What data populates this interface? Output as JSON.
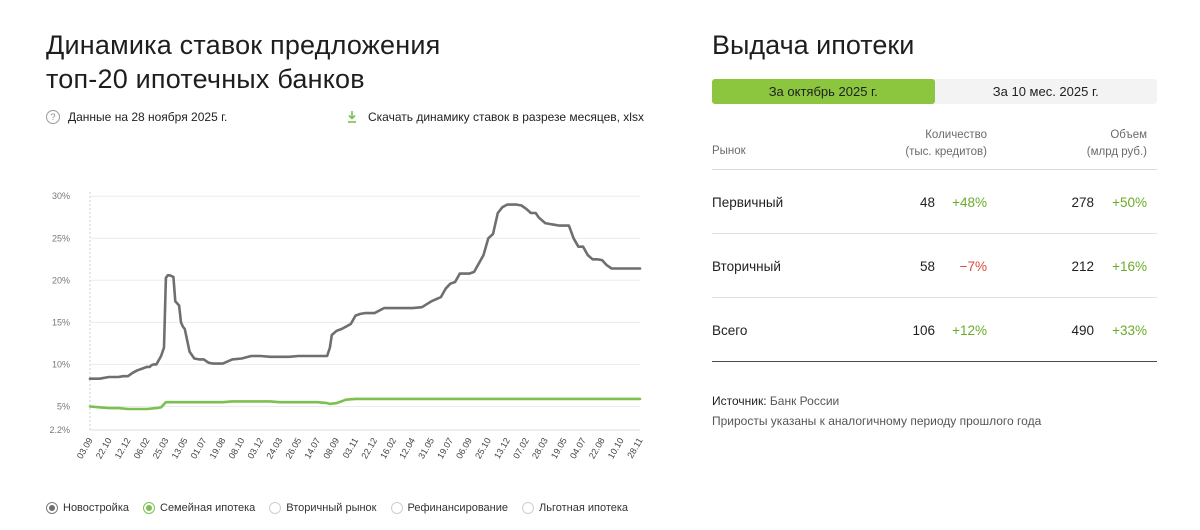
{
  "left": {
    "title_line1": "Динамика ставок предложения",
    "title_line2": "топ-20 ипотечных банков",
    "data_date": "Данные на 28 ноября 2025 г.",
    "download_label": "Скачать динамику ставок в разрезе месяцев, xlsx"
  },
  "legend": [
    {
      "label": "Новостройка",
      "state": "selected",
      "color": "#6f6f6f"
    },
    {
      "label": "Семейная ипотека",
      "state": "selected",
      "color": "#7cc04f"
    },
    {
      "label": "Вторичный рынок",
      "state": "unselected"
    },
    {
      "label": "Рефинансирование",
      "state": "unselected"
    },
    {
      "label": "Льготная ипотека",
      "state": "unselected"
    }
  ],
  "right": {
    "title": "Выдача ипотеки",
    "tabs": [
      {
        "label": "За октябрь 2025 г.",
        "active": true
      },
      {
        "label": "За 10 мес. 2025 г.",
        "active": false
      }
    ],
    "table": {
      "col_market": "Рынок",
      "col_count_1": "Количество",
      "col_count_2": "(тыс. кредитов)",
      "col_volume_1": "Объем",
      "col_volume_2": "(млрд руб.)",
      "rows": [
        {
          "name": "Первичный",
          "count": "48",
          "count_delta": "+48%",
          "count_sign": "pos",
          "volume": "278",
          "volume_delta": "+50%",
          "volume_sign": "pos"
        },
        {
          "name": "Вторичный",
          "count": "58",
          "count_delta": "−7%",
          "count_sign": "neg",
          "volume": "212",
          "volume_delta": "+16%",
          "volume_sign": "pos"
        },
        {
          "name": "Всего",
          "count": "106",
          "count_delta": "+12%",
          "count_sign": "pos",
          "volume": "490",
          "volume_delta": "+33%",
          "volume_sign": "pos"
        }
      ]
    },
    "source_label": "Источник:",
    "source_value": "Банк России",
    "note": "Приросты указаны к аналогичному периоду прошлого года"
  },
  "chart_data": {
    "type": "line",
    "y_ticks": [
      "2.2%",
      "5%",
      "10%",
      "15%",
      "20%",
      "25%",
      "30%"
    ],
    "y_tick_values": [
      2.2,
      5,
      10,
      15,
      20,
      25,
      30
    ],
    "ylim": [
      2.2,
      30.5
    ],
    "grid": true,
    "x_ticks": [
      "03.09",
      "22.10",
      "12.12",
      "06.02",
      "25.03",
      "13.05",
      "01.07",
      "19.08",
      "08.10",
      "03.12",
      "24.03",
      "26.05",
      "14.07",
      "08.09",
      "03.11",
      "22.12",
      "16.02",
      "12.04",
      "31.05",
      "19.07",
      "06.09",
      "25.10",
      "13.12",
      "07.02",
      "28.03",
      "19.05",
      "04.07",
      "22.08",
      "10.10",
      "28.11"
    ],
    "series": [
      {
        "name": "Новостройка",
        "color": "#6f6f6f",
        "x": [
          0,
          1,
          2,
          3,
          3.5,
          4,
          4.5,
          5,
          5.5,
          6,
          6.3,
          6.5,
          6.7,
          7,
          7.5,
          7.8,
          8,
          8.2,
          8.4,
          8.8,
          9,
          9.4,
          9.6,
          9.8,
          10,
          10.5,
          11,
          11.5,
          12,
          12.5,
          13,
          14,
          15,
          16,
          17,
          18,
          19,
          20,
          21,
          22,
          23,
          24,
          25,
          25.3,
          25.5,
          26,
          26.5,
          27,
          27.5,
          28,
          28.5,
          29,
          30,
          31,
          32,
          33,
          34,
          35,
          36,
          37,
          37.5,
          38,
          38.5,
          39,
          39.5,
          40,
          40.5,
          41,
          41.5,
          42,
          42.5,
          43,
          43.5,
          44,
          44.5,
          45,
          45.5,
          46,
          46.5,
          47,
          47.3,
          47.6,
          48,
          48.5,
          49,
          49.5,
          50,
          50.5,
          51,
          51.5,
          52,
          52.5,
          53,
          53.5,
          54,
          54.5,
          55,
          56,
          57,
          58
        ],
        "y": [
          8.3,
          8.3,
          8.5,
          8.5,
          8.6,
          8.6,
          9.0,
          9.3,
          9.5,
          9.7,
          9.7,
          9.9,
          10.0,
          10.0,
          11.0,
          12.0,
          20.3,
          20.6,
          20.6,
          20.4,
          17.5,
          17.0,
          15.0,
          14.5,
          14.2,
          11.5,
          10.7,
          10.6,
          10.6,
          10.2,
          10.1,
          10.1,
          10.6,
          10.7,
          11.0,
          11.0,
          10.9,
          10.9,
          10.9,
          11.0,
          11.0,
          11.0,
          11.0,
          12.0,
          13.5,
          14.0,
          14.2,
          14.5,
          14.8,
          15.8,
          16.0,
          16.1,
          16.1,
          16.7,
          16.7,
          16.7,
          16.7,
          16.8,
          17.5,
          18.0,
          19.0,
          19.6,
          19.8,
          20.8,
          20.8,
          20.8,
          21.0,
          22.0,
          23.0,
          25.0,
          25.5,
          28.0,
          28.7,
          29.0,
          29.0,
          29.0,
          28.9,
          28.5,
          28.0,
          28.0,
          27.5,
          27.2,
          26.8,
          26.7,
          26.6,
          26.5,
          26.5,
          26.5,
          25.0,
          24.0,
          24.0,
          23.0,
          22.5,
          22.5,
          22.4,
          21.8,
          21.4,
          21.4,
          21.4,
          21.4
        ]
      },
      {
        "name": "Семейная ипотека",
        "color": "#7cc04f",
        "x": [
          0,
          1,
          2,
          3,
          4,
          5,
          6,
          7,
          7.5,
          8,
          9,
          10,
          11,
          12,
          13,
          14,
          15,
          16,
          17,
          18,
          19,
          20,
          21,
          22,
          23,
          24,
          25,
          25.3,
          26,
          27,
          28,
          29,
          30,
          35,
          40,
          45,
          50,
          55,
          58
        ],
        "y": [
          5.0,
          4.9,
          4.8,
          4.8,
          4.7,
          4.7,
          4.7,
          4.8,
          4.9,
          5.5,
          5.5,
          5.5,
          5.5,
          5.5,
          5.5,
          5.5,
          5.6,
          5.6,
          5.6,
          5.6,
          5.6,
          5.5,
          5.5,
          5.5,
          5.5,
          5.5,
          5.4,
          5.3,
          5.4,
          5.8,
          5.9,
          5.9,
          5.9,
          5.9,
          5.9,
          5.9,
          5.9,
          5.9,
          5.9
        ]
      }
    ],
    "x_max": 58
  }
}
